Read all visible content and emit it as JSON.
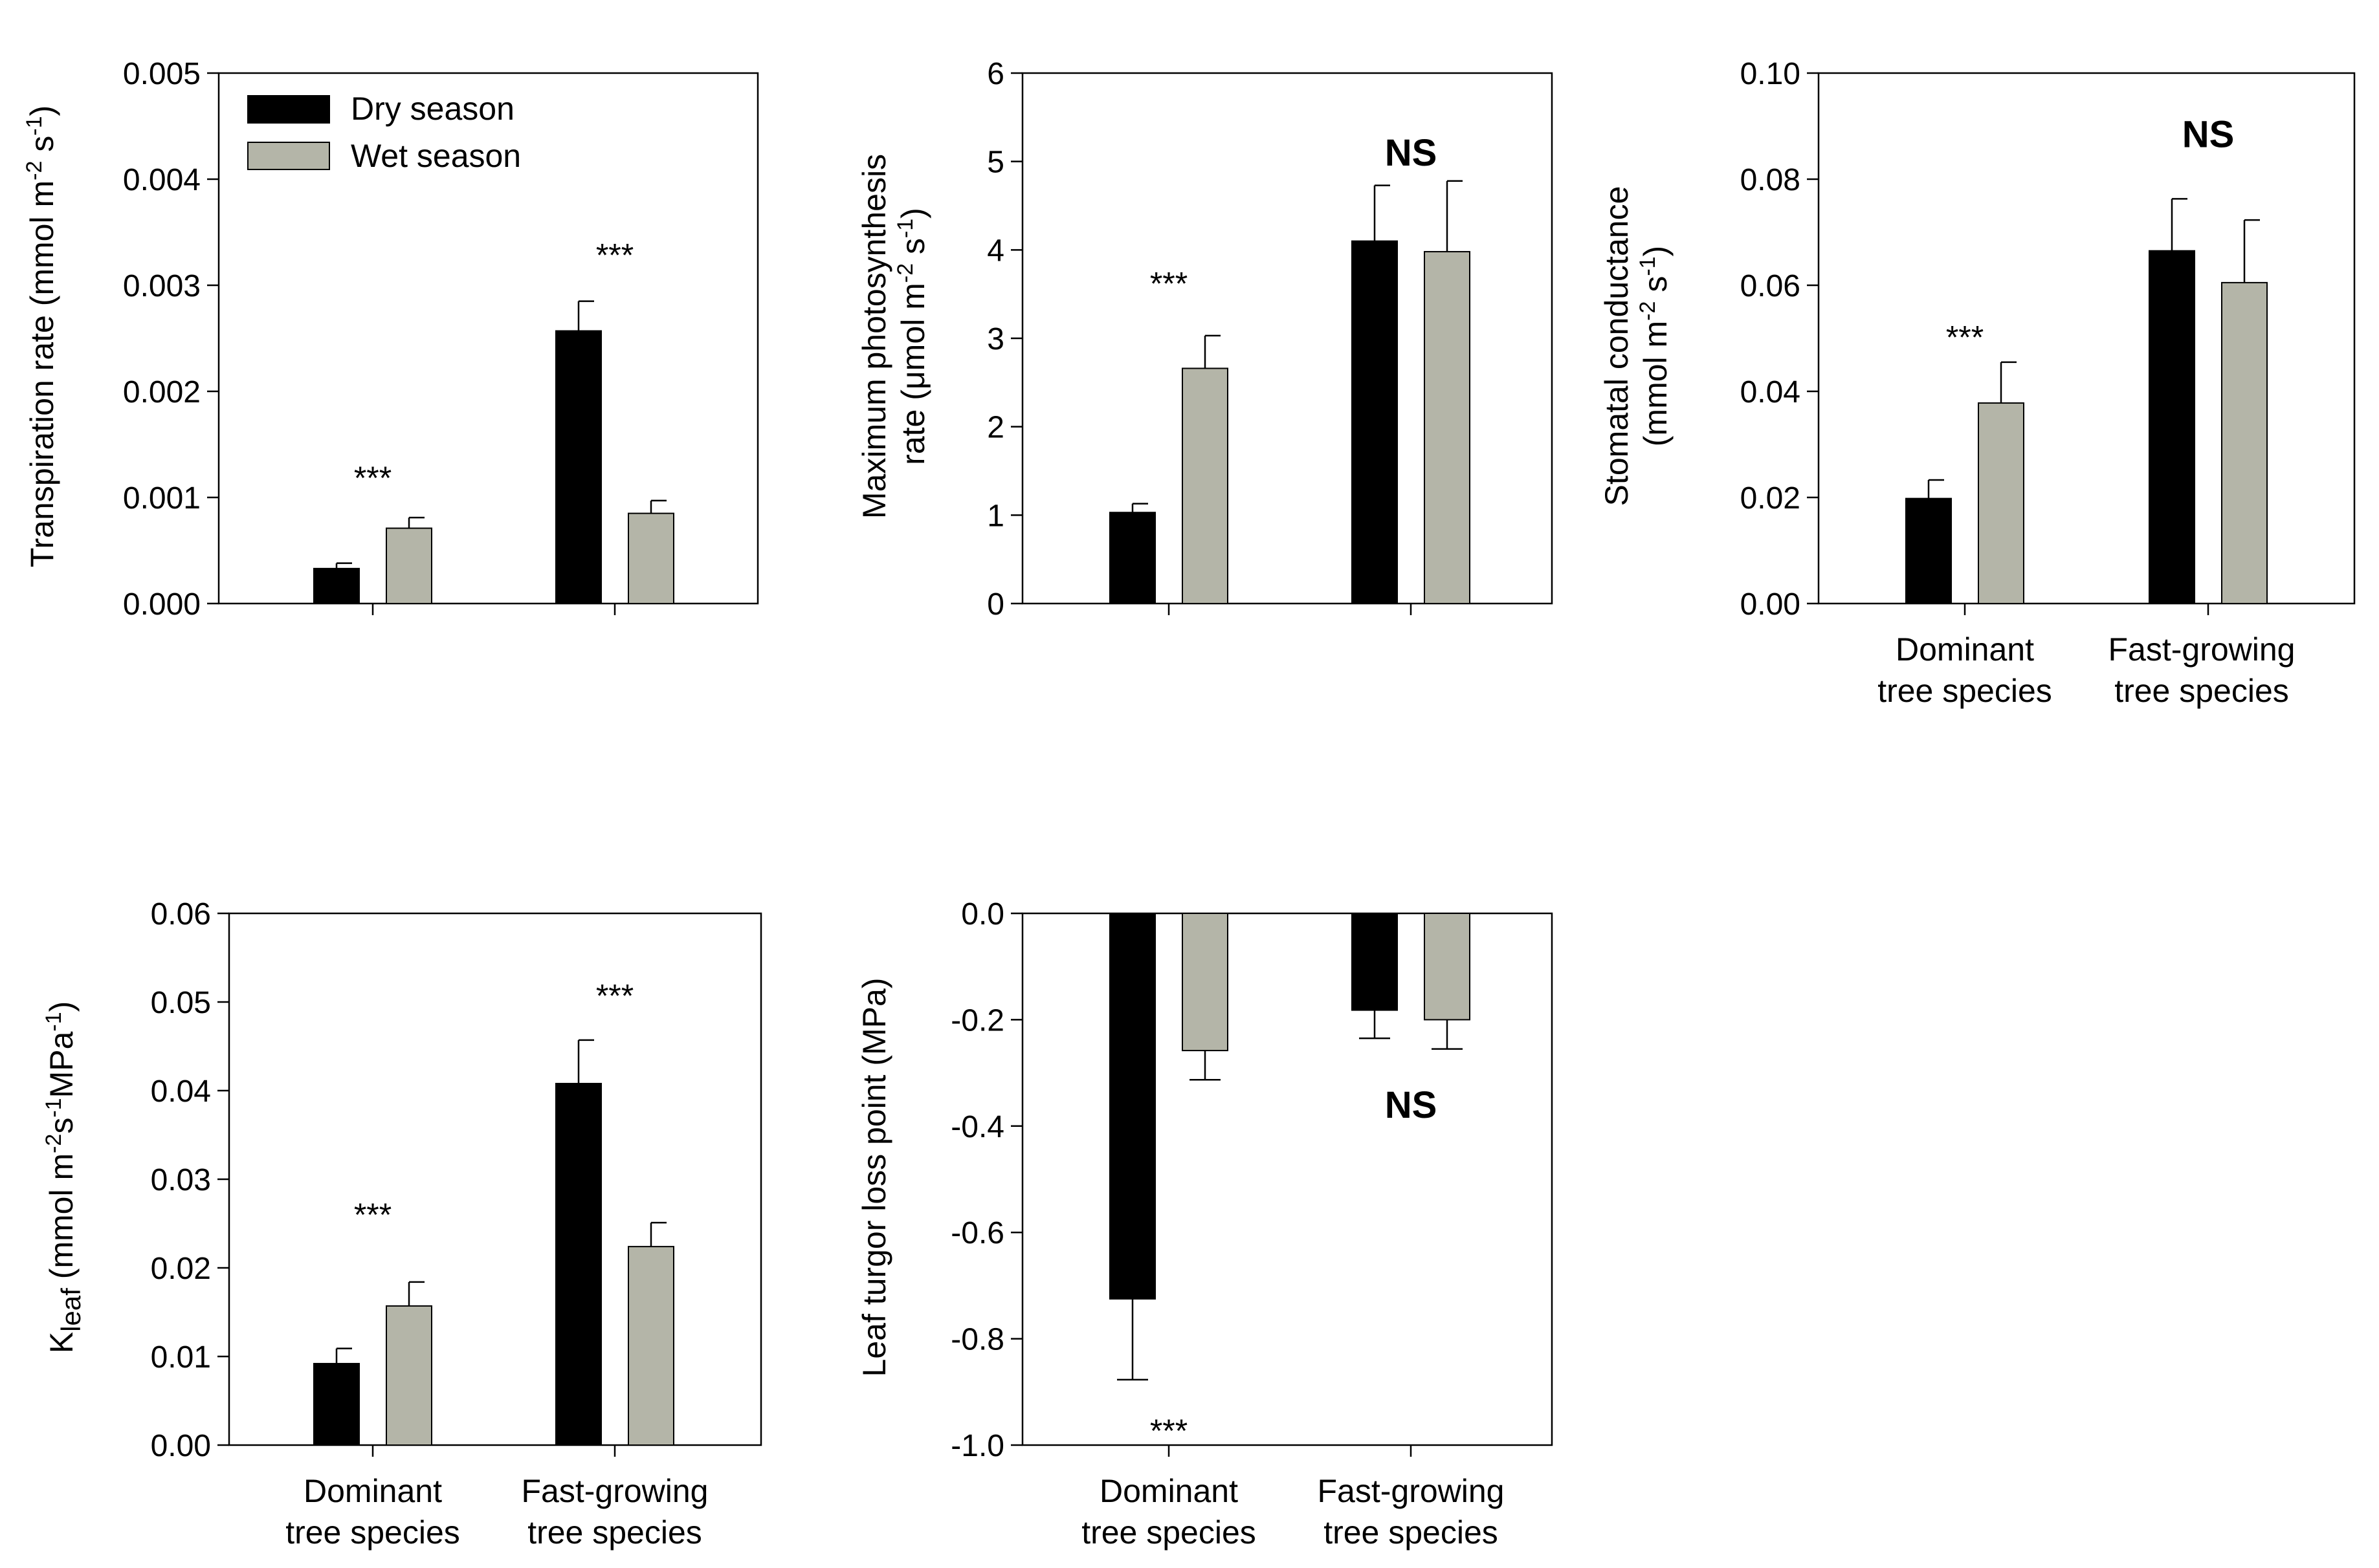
{
  "legend": {
    "items": [
      {
        "label": "Dry season",
        "color": "#000000"
      },
      {
        "label": "Wet season",
        "color": "#b4b5a8"
      }
    ]
  },
  "colors": {
    "dry": "#000000",
    "wet": "#b4b5a8",
    "axis": "#000000"
  },
  "chart_data": [
    {
      "id": "transpiration",
      "type": "bar",
      "ylabel_main": "Transpiration rate (mmol m",
      "ylabel_sup1": "-2",
      "ylabel_mid": " s",
      "ylabel_sup2": "-1",
      "ylabel_end": ")",
      "ylim": [
        0,
        0.005
      ],
      "yticks": [
        "0.000",
        "0.001",
        "0.002",
        "0.003",
        "0.004",
        "0.005"
      ],
      "categories": [
        "Dominant tree species",
        "Fast-growing tree species"
      ],
      "series": [
        {
          "name": "Dry season",
          "values": [
            0.00033,
            0.00257
          ],
          "errors": [
            5e-05,
            0.00028
          ]
        },
        {
          "name": "Wet season",
          "values": [
            0.00071,
            0.00085
          ],
          "errors": [
            0.0001,
            0.00012
          ]
        }
      ],
      "annotations": [
        {
          "text": "***",
          "x_cat": 0,
          "y": 0.00125,
          "bold": false
        },
        {
          "text": "***",
          "x_cat": 1,
          "y": 0.00335,
          "bold": false
        }
      ]
    },
    {
      "id": "photosynthesis",
      "type": "bar",
      "ylabel_line1": "Maximum photosynthesis",
      "ylabel_main": "rate (μmol m",
      "ylabel_sup1": "-2",
      "ylabel_mid": " s",
      "ylabel_sup2": "-1",
      "ylabel_end": ")",
      "ylim": [
        0,
        6
      ],
      "yticks": [
        "0",
        "1",
        "2",
        "3",
        "4",
        "5",
        "6"
      ],
      "categories": [
        "Dominant tree species",
        "Fast-growing tree species"
      ],
      "series": [
        {
          "name": "Dry season",
          "values": [
            1.03,
            4.1
          ],
          "errors": [
            0.1,
            0.63
          ]
        },
        {
          "name": "Wet season",
          "values": [
            2.66,
            3.98
          ],
          "errors": [
            0.37,
            0.8
          ]
        }
      ],
      "annotations": [
        {
          "text": "***",
          "x_cat": 0,
          "y": 3.7,
          "bold": false
        },
        {
          "text": "NS",
          "x_cat": 1,
          "y": 5.1,
          "bold": true
        }
      ]
    },
    {
      "id": "stomatal",
      "type": "bar",
      "ylabel_line1": "Stomatal conductance",
      "ylabel_main": "(mmol m",
      "ylabel_sup1": "-2",
      "ylabel_mid": " s",
      "ylabel_sup2": "-1",
      "ylabel_end": ")",
      "ylim": [
        0,
        0.1
      ],
      "yticks": [
        "0.00",
        "0.02",
        "0.04",
        "0.06",
        "0.08",
        "0.10"
      ],
      "categories": [
        "Dominant tree species",
        "Fast-growing tree species"
      ],
      "xtick_labels": [
        [
          "Dominant",
          "tree species"
        ],
        [
          "Fast-growing",
          "tree species"
        ]
      ],
      "series": [
        {
          "name": "Dry season",
          "values": [
            0.0198,
            0.0665
          ],
          "errors": [
            0.0035,
            0.0098
          ]
        },
        {
          "name": "Wet season",
          "values": [
            0.0378,
            0.0605
          ],
          "errors": [
            0.0077,
            0.0118
          ]
        }
      ],
      "annotations": [
        {
          "text": "***",
          "x_cat": 0,
          "y": 0.0515,
          "bold": false
        },
        {
          "text": "NS",
          "x_cat": 1,
          "y": 0.0885,
          "bold": true
        }
      ]
    },
    {
      "id": "kleaf",
      "type": "bar",
      "ylabel_k": "K",
      "ylabel_sub": "leaf",
      "ylabel_main": " (mmol m",
      "ylabel_sup1": "-2",
      "ylabel_mid": "s",
      "ylabel_sup2": "-1",
      "ylabel_mid2": "MPa",
      "ylabel_sup3": "-1",
      "ylabel_end": ")",
      "ylim": [
        0,
        0.06
      ],
      "yticks": [
        "0.00",
        "0.01",
        "0.02",
        "0.03",
        "0.04",
        "0.05",
        "0.06"
      ],
      "categories": [
        "Dominant tree species",
        "Fast-growing tree species"
      ],
      "xtick_labels": [
        [
          "Dominant",
          "tree species"
        ],
        [
          "Fast-growing",
          "tree species"
        ]
      ],
      "series": [
        {
          "name": "Dry season",
          "values": [
            0.0092,
            0.0408
          ],
          "errors": [
            0.0017,
            0.0049
          ]
        },
        {
          "name": "Wet season",
          "values": [
            0.0157,
            0.0224
          ],
          "errors": [
            0.0027,
            0.0027
          ]
        }
      ],
      "annotations": [
        {
          "text": "***",
          "x_cat": 0,
          "y": 0.0268,
          "bold": false
        },
        {
          "text": "***",
          "x_cat": 1,
          "y": 0.0515,
          "bold": false
        }
      ]
    },
    {
      "id": "turgor",
      "type": "bar",
      "ylabel_main": "Leaf turgor loss point (MPa)",
      "ylim": [
        -1.0,
        0
      ],
      "yticks": [
        "0.0",
        "-0.2",
        "-0.4",
        "-0.6",
        "-0.8",
        "-1.0"
      ],
      "categories": [
        "Dominant tree species",
        "Fast-growing tree species"
      ],
      "xtick_labels": [
        [
          "Dominant",
          "tree species"
        ],
        [
          "Fast-growing",
          "tree species"
        ]
      ],
      "series": [
        {
          "name": "Dry season",
          "values": [
            -0.725,
            -0.182
          ],
          "errors": [
            0.152,
            0.053
          ]
        },
        {
          "name": "Wet season",
          "values": [
            -0.258,
            -0.2
          ],
          "errors": [
            0.055,
            0.055
          ]
        }
      ],
      "annotations": [
        {
          "text": "***",
          "x_cat": 0,
          "y": -0.96,
          "bold": false
        },
        {
          "text": "NS",
          "x_cat": 1,
          "y": -0.36,
          "bold": true
        }
      ]
    }
  ]
}
